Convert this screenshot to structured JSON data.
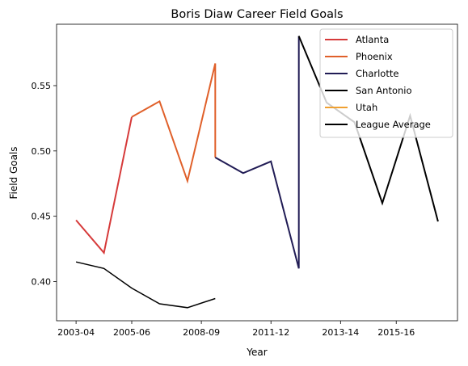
{
  "chart_data": {
    "type": "line",
    "title": "Boris Diaw Career Field Goals",
    "xlabel": "Year",
    "ylabel": "Field Goals",
    "x_tick_labels": [
      "2003-04",
      "2005-06",
      "2008-09",
      "2011-12",
      "2013-14",
      "2015-16"
    ],
    "x_tick_positions": [
      0,
      2,
      4.5,
      7,
      9.5,
      11.5
    ],
    "xlim": [
      -0.7,
      13.7
    ],
    "ylim": [
      0.37,
      0.597
    ],
    "y_ticks": [
      0.4,
      0.45,
      0.5,
      0.55
    ],
    "y_tick_labels": [
      "0.40",
      "0.45",
      "0.50",
      "0.55"
    ],
    "grid": false,
    "legend_position": "top-right",
    "series": [
      {
        "name": "Atlanta",
        "color": "#d63a3a",
        "points": [
          [
            0,
            0.447
          ],
          [
            1,
            0.422
          ],
          [
            2,
            0.526
          ]
        ]
      },
      {
        "name": "Phoenix",
        "color": "#e0602a",
        "points": [
          [
            2,
            0.526
          ],
          [
            3,
            0.538
          ],
          [
            4,
            0.477
          ],
          [
            5,
            0.567
          ],
          [
            5,
            0.495
          ]
        ]
      },
      {
        "name": "Charlotte",
        "color": "#211c55",
        "points": [
          [
            5,
            0.495
          ],
          [
            6,
            0.483
          ],
          [
            7,
            0.492
          ],
          [
            8,
            0.41
          ],
          [
            8,
            0.588
          ]
        ]
      },
      {
        "name": "San Antonio",
        "color": "#000000",
        "points": [
          [
            8,
            0.588
          ],
          [
            9,
            0.537
          ],
          [
            10,
            0.522
          ],
          [
            11,
            0.46
          ],
          [
            12,
            0.527
          ],
          [
            13,
            0.446
          ]
        ]
      },
      {
        "name": "Utah",
        "color": "#f0a030",
        "points": []
      },
      {
        "name": "League Average",
        "color": "#000000",
        "points": [
          [
            0,
            0.415
          ],
          [
            1,
            0.41
          ],
          [
            2,
            0.395
          ],
          [
            3,
            0.383
          ],
          [
            4,
            0.38
          ],
          [
            5,
            0.387
          ]
        ]
      }
    ]
  }
}
